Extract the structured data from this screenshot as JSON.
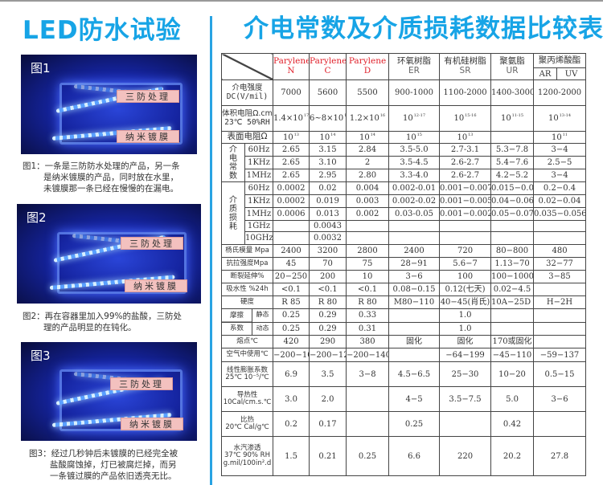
{
  "left": {
    "title": "LED防水试验",
    "figures": [
      {
        "label": "图1",
        "tag_top": "三防处理",
        "tag_bottom": "纳米镀膜",
        "caption": [
          "图1：一条是三防防水处理的产品，另一条",
          "是纳米镀膜的产品，同时放在水里，",
          "未镀膜那一条已经在慢慢的在漏电。"
        ]
      },
      {
        "label": "图2",
        "tag_top": "三防处理",
        "tag_bottom": "纳米镀膜",
        "caption": [
          "图2：再在容器里加入99%的盐酸，三防处",
          "理的产品明显的在钝化。"
        ]
      },
      {
        "label": "图3",
        "tag_top": "三防处理",
        "tag_bottom": "纳米镀膜",
        "caption": [
          "图3：经过几秒钟后未镀膜的已经完全被",
          "盐酸腐蚀掉，灯已被腐烂掉，而另",
          "一条镀过膜的产品依旧透亮无比。"
        ]
      }
    ]
  },
  "right": {
    "title": "介电常数及介质损耗数据比较表",
    "header": [
      {
        "name": "Parylene",
        "code": "N",
        "red": true
      },
      {
        "name": "Parylene",
        "code": "C",
        "red": true
      },
      {
        "name": "Parylene",
        "code": "D",
        "red": true
      },
      {
        "name": "环氧树脂",
        "code": "ER"
      },
      {
        "name": "有机硅树脂",
        "code": "SR"
      },
      {
        "name": "聚氨脂",
        "code": "UR"
      },
      {
        "name": "聚丙烯酸酯",
        "sub": [
          "AR",
          "UV"
        ]
      }
    ],
    "rows": [
      {
        "label": "介电强度",
        "sublabel": "DC(V/mil)",
        "values": [
          "7000",
          "5600",
          "5500",
          "900-1000",
          "1100-2000",
          "1400-3000",
          "1200-2000"
        ]
      },
      {
        "label": "体积电阻Ω.cm",
        "sublabel": "23℃ 50%RH",
        "values": [
          "1.4×10^17",
          "6~8×10^16",
          "1.2×10^16",
          "10^12-17",
          "10^15-16",
          "10^11-15",
          "10^13-14"
        ]
      },
      {
        "label": "表面电阻Ω",
        "big": true,
        "values": [
          "10^13",
          "10^14",
          "10^14",
          "10^15",
          "10^13",
          "",
          "10^11"
        ]
      },
      {
        "group": "介电常数",
        "items": [
          {
            "label": "60Hz",
            "values": [
              "2.65",
              "3.15",
              "2.84",
              "3.5-5.0",
              "2.7-3.1",
              "5.3−7.8",
              "3−4"
            ]
          },
          {
            "label": "1KHz",
            "values": [
              "2.65",
              "3.10",
              "2",
              "3.5-4.5",
              "2.6-2.7",
              "5.4−7.6",
              "2.5−5"
            ]
          },
          {
            "label": "1MHz",
            "values": [
              "2.65",
              "2.95",
              "2.80",
              "3.3-4.0",
              "2.6-2.7",
              "4.2−5.2",
              "3−4"
            ]
          }
        ]
      },
      {
        "group": "介质损耗",
        "items": [
          {
            "label": "60Hz",
            "values": [
              "0.0002",
              "0.02",
              "0.004",
              "0.002-0.01",
              "0.001−0.007",
              "0.015−0.05",
              "0.2−0.4"
            ]
          },
          {
            "label": "1KHz",
            "values": [
              "0.0002",
              "0.019",
              "0.003",
              "0.002-0.02",
              "0.001−0.005",
              "0.04−0.06",
              "0.02−0.04"
            ]
          },
          {
            "label": "1MHz",
            "values": [
              "0.0006",
              "0.013",
              "0.002",
              "0.03-0.05",
              "0.001−0.002",
              "0.05−0.07",
              "0.035−0.056"
            ]
          },
          {
            "label": "1GHz",
            "values": [
              "",
              "0.0043",
              "",
              "",
              "",
              "",
              ""
            ]
          },
          {
            "label": "10GHz",
            "values": [
              "",
              "0.0032",
              "",
              "",
              "",
              "",
              ""
            ]
          }
        ]
      },
      {
        "label": "杨氏模量 Mpa",
        "values": [
          "2400",
          "3200",
          "2800",
          "2400",
          "720",
          "80−800",
          "480"
        ]
      },
      {
        "label": "抗拉强度Mpa",
        "values": [
          "45",
          "70",
          "75",
          "28−91",
          "5.6−7",
          "1.13−70",
          "32−77"
        ]
      },
      {
        "label": "断裂延伸%",
        "values": [
          "20−250",
          "200",
          "10",
          "3−6",
          "100",
          "100−1000",
          "3−85"
        ]
      },
      {
        "label": "吸水性 %24h",
        "values": [
          "<0.1",
          "<0.1",
          "<0.1",
          "0.08−0.15",
          "0.12(七天)",
          "0.02−4.5",
          ""
        ]
      },
      {
        "label": "硬度",
        "values": [
          "R 85",
          "R 80",
          "R 80",
          "M80−110",
          "40−45(肖氏)",
          "10A−25D 肖氏",
          "H−2H"
        ]
      },
      {
        "group2": "摩擦系数",
        "grouplines": [
          "摩擦",
          "系数"
        ],
        "items": [
          {
            "label": "静态",
            "values": [
              "0.25",
              "0.29",
              "0.33",
              "",
              "1.0",
              "",
              ""
            ]
          },
          {
            "label": "动态",
            "values": [
              "0.25",
              "0.29",
              "0.31",
              "",
              "1.0",
              "",
              ""
            ]
          }
        ]
      },
      {
        "label": "熔点℃",
        "values": [
          "420",
          "290",
          "380",
          "固化",
          "固化",
          "170或固化",
          ""
        ]
      },
      {
        "label": "空气中使用℃",
        "values": [
          "−200−100",
          "−200−120",
          "−200−140",
          "",
          "−64−199",
          "−45−110",
          "−59−137"
        ]
      },
      {
        "label": "线性膨胀系数",
        "sublabel": "25℃ 10⁻⁵/℃",
        "values": [
          "6.9",
          "3.5",
          "3−8",
          "4.5−6.5",
          "25−30",
          "10−20",
          "0.5−15"
        ]
      },
      {
        "label": "导热性",
        "sublabel": "10Cal/cm.s.℃",
        "values": [
          "3.0",
          "2.0",
          "",
          "4−5",
          "3.5−7.5",
          "5.0",
          "3−6"
        ]
      },
      {
        "label": "比热",
        "sublabel": "20℃ Cal/g℃",
        "values": [
          "0.2",
          "0.17",
          "",
          "0.25",
          "",
          "0.42",
          ""
        ]
      },
      {
        "label": "水汽渗透",
        "sublabel": "37℃ 90% RH",
        "sublabel2": "g.mil/100in².d",
        "values": [
          "1.5",
          "0.21",
          "0.25",
          "6.6",
          "220",
          "20.2",
          "27.8"
        ]
      }
    ]
  },
  "colors": {
    "accent": "#17a4e6",
    "parylene": "#e0202a",
    "tag": "#f3c1bf"
  }
}
